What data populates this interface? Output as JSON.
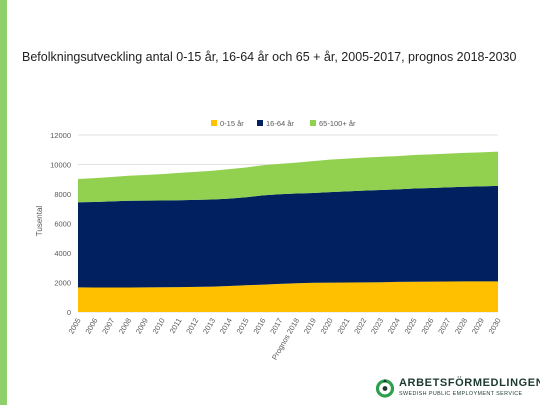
{
  "slide": {
    "title": "Befolkningsutveckling antal 0-15 år, 16-64 år och 65 + år, 2005-2017, prognos 2018-2030"
  },
  "logo": {
    "name": "ARBETSFÖRMEDLINGEN",
    "subtitle": "SWEDISH PUBLIC EMPLOYMENT SERVICE"
  },
  "chart_data": {
    "type": "area",
    "stacked": true,
    "ylabel": "Tusental",
    "ylim": [
      0,
      12000
    ],
    "yticks": [
      0,
      2000,
      4000,
      6000,
      8000,
      10000,
      12000
    ],
    "grid": true,
    "legend_position": "top",
    "categories": [
      "2005",
      "2006",
      "2007",
      "2008",
      "2009",
      "2010",
      "2011",
      "2012",
      "2013",
      "2014",
      "2015",
      "2016",
      "2017",
      "Prognos 2018",
      "2019",
      "2020",
      "2021",
      "2022",
      "2023",
      "2024",
      "2025",
      "2026",
      "2027",
      "2028",
      "2029",
      "2030"
    ],
    "series": [
      {
        "name": "0-15 år",
        "color": "#ffc000",
        "values": [
          1670,
          1660,
          1660,
          1660,
          1670,
          1680,
          1690,
          1700,
          1720,
          1760,
          1810,
          1860,
          1910,
          1950,
          1980,
          1990,
          2000,
          2010,
          2020,
          2040,
          2050,
          2060,
          2070,
          2080,
          2080,
          2080
        ]
      },
      {
        "name": "16-64 år",
        "color": "#002060",
        "values": [
          5770,
          5800,
          5840,
          5880,
          5880,
          5880,
          5890,
          5900,
          5910,
          5930,
          5970,
          6050,
          6070,
          6080,
          6090,
          6140,
          6180,
          6220,
          6250,
          6270,
          6320,
          6350,
          6380,
          6410,
          6440,
          6470
        ]
      },
      {
        "name": "65-100+ år",
        "color": "#92d050",
        "values": [
          1580,
          1620,
          1650,
          1700,
          1740,
          1790,
          1850,
          1900,
          1950,
          2000,
          2020,
          2040,
          2060,
          2100,
          2160,
          2200,
          2220,
          2240,
          2250,
          2260,
          2270,
          2280,
          2290,
          2300,
          2300,
          2320
        ]
      }
    ]
  }
}
